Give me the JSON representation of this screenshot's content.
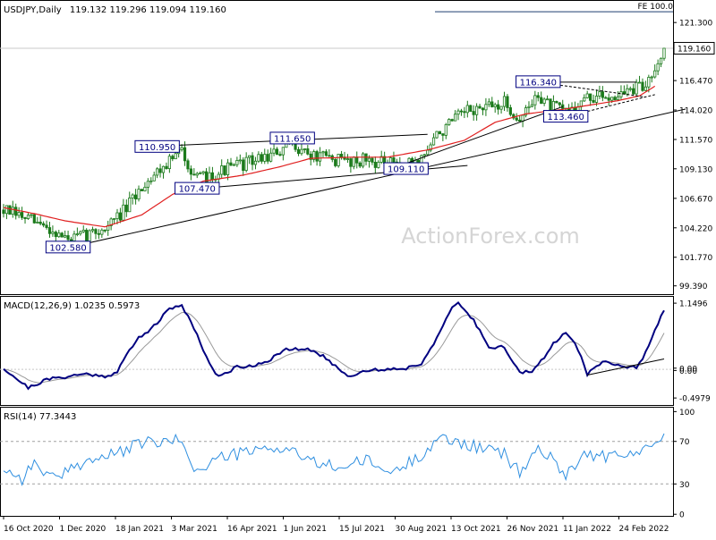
{
  "chart_data": {
    "type": "candlestick",
    "main": {
      "title": "USDJPY,Daily",
      "ohlc_text": "119.132 119.296 119.094 119.160",
      "last_price": 119.16,
      "last_price_label": "119.160",
      "price_range": [
        98.7,
        123.1
      ],
      "y_ticks": [
        "121.300",
        "116.470",
        "114.020",
        "111.570",
        "109.130",
        "106.670",
        "104.220",
        "101.770",
        "99.390"
      ],
      "fe_level": 122.2,
      "fe_label": "FE 100.0",
      "watermark": "ActionForex.com",
      "labels": [
        {
          "text": "102.580",
          "t": 21,
          "v": 102.58
        },
        {
          "text": "107.470",
          "t": 63,
          "v": 107.47
        },
        {
          "text": "110.950",
          "t": 50,
          "v": 110.95
        },
        {
          "text": "111.650",
          "t": 94,
          "v": 111.65
        },
        {
          "text": "109.110",
          "t": 131,
          "v": 109.11
        },
        {
          "text": "116.340",
          "t": 174,
          "v": 116.34
        },
        {
          "text": "113.460",
          "t": 183,
          "v": 113.46
        }
      ],
      "trendlines": [
        {
          "from": [
            21,
            102.58
          ],
          "to": [
            222,
            114.1
          ]
        },
        {
          "from": [
            44,
            110.95
          ],
          "to": [
            138,
            112.0
          ]
        },
        {
          "from": [
            63,
            107.47
          ],
          "to": [
            151,
            109.4
          ]
        },
        {
          "from": [
            127,
            109.2
          ],
          "to": [
            182,
            114.3
          ]
        },
        {
          "from": [
            174,
            116.34
          ],
          "to": [
            206,
            116.34
          ]
        },
        {
          "from": [
            174,
            116.34
          ],
          "to": [
            209,
            115.1
          ]
        },
        {
          "from": [
            183,
            113.46
          ],
          "to": [
            212,
            115.3
          ]
        }
      ],
      "ma_anchors": [
        [
          0,
          105.9
        ],
        [
          10,
          105.4
        ],
        [
          20,
          104.8
        ],
        [
          33,
          104.3
        ],
        [
          45,
          105.3
        ],
        [
          55,
          107.0
        ],
        [
          65,
          108.1
        ],
        [
          78,
          108.6
        ],
        [
          90,
          109.3
        ],
        [
          100,
          110.0
        ],
        [
          115,
          110.1
        ],
        [
          125,
          110.1
        ],
        [
          138,
          110.7
        ],
        [
          150,
          111.5
        ],
        [
          160,
          113.0
        ],
        [
          170,
          113.7
        ],
        [
          180,
          114.0
        ],
        [
          190,
          114.4
        ],
        [
          200,
          114.8
        ],
        [
          207,
          115.2
        ],
        [
          212,
          116.0
        ]
      ],
      "candle_anchors": [
        [
          0,
          105.7
        ],
        [
          8,
          104.9
        ],
        [
          16,
          104.0
        ],
        [
          21,
          103.2
        ],
        [
          27,
          103.6
        ],
        [
          33,
          104.2
        ],
        [
          40,
          105.8
        ],
        [
          46,
          108.0
        ],
        [
          52,
          109.4
        ],
        [
          58,
          110.6
        ],
        [
          63,
          108.2
        ],
        [
          70,
          108.9
        ],
        [
          80,
          109.7
        ],
        [
          90,
          110.5
        ],
        [
          94,
          111.3
        ],
        [
          100,
          110.2
        ],
        [
          110,
          109.8
        ],
        [
          118,
          109.9
        ],
        [
          126,
          109.5
        ],
        [
          131,
          109.4
        ],
        [
          136,
          110.0
        ],
        [
          141,
          111.9
        ],
        [
          148,
          113.4
        ],
        [
          152,
          114.0
        ],
        [
          158,
          114.2
        ],
        [
          163,
          114.6
        ],
        [
          168,
          113.2
        ],
        [
          174,
          115.3
        ],
        [
          178,
          114.3
        ],
        [
          183,
          113.9
        ],
        [
          189,
          114.9
        ],
        [
          195,
          115.1
        ],
        [
          201,
          115.4
        ],
        [
          206,
          115.8
        ],
        [
          209,
          116.0
        ],
        [
          212,
          117.8
        ],
        [
          215,
          119.16
        ]
      ]
    },
    "macd": {
      "title": "MACD(12,26,9) 1.0235 0.5973",
      "ticks": [
        "1.1496",
        "0.00",
        "0.00",
        "-0.4979"
      ],
      "range": [
        -0.62,
        1.26
      ],
      "anchors": [
        [
          0,
          0.02
        ],
        [
          8,
          -0.32
        ],
        [
          14,
          -0.18
        ],
        [
          21,
          -0.12
        ],
        [
          27,
          -0.08
        ],
        [
          33,
          -0.12
        ],
        [
          37,
          -0.05
        ],
        [
          40,
          0.25
        ],
        [
          44,
          0.55
        ],
        [
          49,
          0.75
        ],
        [
          54,
          1.05
        ],
        [
          58,
          1.12
        ],
        [
          62,
          0.72
        ],
        [
          67,
          0.1
        ],
        [
          70,
          -0.14
        ],
        [
          76,
          0.05
        ],
        [
          80,
          0.05
        ],
        [
          86,
          0.15
        ],
        [
          92,
          0.34
        ],
        [
          98,
          0.35
        ],
        [
          102,
          0.3
        ],
        [
          108,
          0.06
        ],
        [
          112,
          -0.12
        ],
        [
          118,
          -0.02
        ],
        [
          124,
          0.0
        ],
        [
          131,
          0.02
        ],
        [
          136,
          0.1
        ],
        [
          141,
          0.55
        ],
        [
          146,
          1.05
        ],
        [
          148,
          1.16
        ],
        [
          153,
          0.85
        ],
        [
          158,
          0.4
        ],
        [
          163,
          0.38
        ],
        [
          168,
          -0.05
        ],
        [
          172,
          -0.05
        ],
        [
          176,
          0.2
        ],
        [
          179,
          0.45
        ],
        [
          183,
          0.65
        ],
        [
          186,
          0.48
        ],
        [
          190,
          -0.08
        ],
        [
          196,
          0.15
        ],
        [
          202,
          0.05
        ],
        [
          206,
          0.02
        ],
        [
          209,
          0.3
        ],
        [
          212,
          0.7
        ],
        [
          215,
          1.0235
        ]
      ],
      "trendline": {
        "from": [
          190,
          -0.1
        ],
        "to": [
          215,
          0.18
        ]
      }
    },
    "rsi": {
      "title": "RSI(14) 77.3443",
      "ticks": [
        "100",
        "70",
        "30",
        "0"
      ],
      "levels": [
        30,
        70
      ],
      "range": [
        0,
        100
      ],
      "anchors": [
        [
          0,
          45
        ],
        [
          6,
          35
        ],
        [
          10,
          50
        ],
        [
          14,
          40
        ],
        [
          18,
          32
        ],
        [
          21,
          44
        ],
        [
          27,
          52
        ],
        [
          33,
          55
        ],
        [
          40,
          62
        ],
        [
          46,
          70
        ],
        [
          52,
          68
        ],
        [
          58,
          72
        ],
        [
          63,
          40
        ],
        [
          70,
          55
        ],
        [
          80,
          60
        ],
        [
          90,
          64
        ],
        [
          94,
          62
        ],
        [
          100,
          50
        ],
        [
          110,
          46
        ],
        [
          118,
          52
        ],
        [
          126,
          40
        ],
        [
          131,
          48
        ],
        [
          136,
          58
        ],
        [
          141,
          72
        ],
        [
          148,
          70
        ],
        [
          152,
          66
        ],
        [
          158,
          62
        ],
        [
          163,
          58
        ],
        [
          168,
          40
        ],
        [
          174,
          64
        ],
        [
          178,
          54
        ],
        [
          183,
          40
        ],
        [
          189,
          58
        ],
        [
          195,
          56
        ],
        [
          201,
          55
        ],
        [
          206,
          60
        ],
        [
          209,
          62
        ],
        [
          212,
          74
        ],
        [
          215,
          77.3443
        ]
      ]
    },
    "x_axis": {
      "labels": [
        "16 Oct 2020",
        "1 Dec 2020",
        "18 Jan 2021",
        "3 Mar 2021",
        "16 Apr 2021",
        "1 Jun 2021",
        "15 Jul 2021",
        "30 Aug 2021",
        "13 Oct 2021",
        "26 Nov 2021",
        "11 Jan 2022",
        "24 Feb 2022"
      ]
    },
    "colors": {
      "candle": "#1b7a1b",
      "ma": "#e02020",
      "macd_main": "#000080",
      "macd_signal": "#9a9a9a",
      "rsi": "#2f8fe0",
      "label_border": "#000080",
      "label_fill": "#ffffff",
      "trend": "#000000"
    }
  }
}
